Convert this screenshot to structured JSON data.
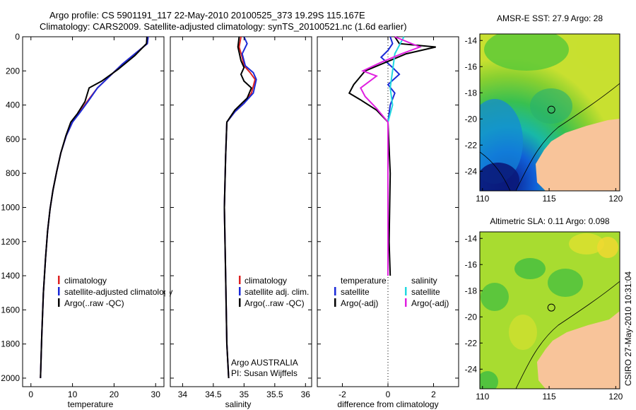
{
  "title": {
    "line1": "Argo profile: CS 5901191_117 22-May-2010 20100525_373 19.29S 115.167E",
    "line2": "Climatology: CARS2009. Satellite-adjusted climatology: synTS_20100521.nc (1.6d earlier)"
  },
  "colors": {
    "climatology": "#dd2222",
    "satellite": "#1a2ad8",
    "argo": "#000000",
    "satellite_salinity": "#22d8e0",
    "argo_adj_salinity": "#e020e0",
    "land": "#f8c49a"
  },
  "chart_data": [
    {
      "type": "line",
      "id": "temperature",
      "xlabel": "temperature",
      "ylabel": "",
      "xlim": [
        -2,
        32
      ],
      "ylim": [
        0,
        2050
      ],
      "y_inverted": true,
      "xticks": [
        0,
        10,
        20,
        30
      ],
      "yticks": [
        0,
        200,
        400,
        600,
        800,
        1000,
        1200,
        1400,
        1600,
        1800,
        2000
      ],
      "legend": [
        "climatology",
        "satellite-adjusted climatology",
        "Argo(..raw -QC)"
      ],
      "series": [
        {
          "name": "climatology",
          "color": "#dd2222",
          "x": [
            28.2,
            28.0,
            25,
            22,
            19,
            16,
            13.5,
            11.5,
            10,
            8.5,
            7.2,
            6.2,
            5.3,
            4.6,
            4.0,
            3.5,
            3.0,
            2.6,
            2.3
          ],
          "y": [
            0,
            40,
            100,
            160,
            230,
            300,
            380,
            450,
            500,
            580,
            680,
            790,
            900,
            1010,
            1140,
            1300,
            1500,
            1750,
            2000
          ]
        },
        {
          "name": "satellite-adjusted climatology",
          "color": "#1a2ad8",
          "x": [
            28.2,
            28.0,
            25,
            22,
            19,
            16,
            13.7,
            11.6,
            10,
            8.5,
            7.2,
            6.2,
            5.3,
            4.6,
            4.0,
            3.5,
            3.0,
            2.6,
            2.3
          ],
          "y": [
            0,
            40,
            100,
            160,
            230,
            300,
            380,
            450,
            500,
            580,
            680,
            790,
            900,
            1010,
            1140,
            1300,
            1500,
            1750,
            2000
          ]
        },
        {
          "name": "Argo(..raw -QC)",
          "color": "#000000",
          "x": [
            27.9,
            27.8,
            25,
            21,
            17,
            14,
            13,
            11.2,
            9.6,
            8.4,
            7.2,
            6.2,
            5.3,
            4.6,
            4.0,
            3.5,
            3.0,
            2.6,
            2.3
          ],
          "y": [
            0,
            40,
            110,
            190,
            260,
            300,
            380,
            450,
            500,
            580,
            680,
            790,
            900,
            1010,
            1140,
            1300,
            1500,
            1750,
            2000
          ]
        }
      ]
    },
    {
      "type": "line",
      "id": "salinity",
      "xlabel": "salinity",
      "ylabel": "",
      "xlim": [
        33.8,
        36.1
      ],
      "ylim": [
        0,
        2050
      ],
      "y_inverted": true,
      "xticks": [
        34,
        34.5,
        35,
        35.5,
        36
      ],
      "legend": [
        "climatology",
        "satellite adj. clim.",
        "Argo(..raw -QC)"
      ],
      "annotations": [
        "Argo AUSTRALIA",
        "PI: Susan Wijffels"
      ],
      "series": [
        {
          "name": "climatology",
          "color": "#dd2222",
          "x": [
            34.95,
            34.92,
            34.97,
            35.0,
            35.1,
            35.18,
            35.12,
            35.0,
            34.85,
            34.72,
            34.7,
            34.68,
            34.7,
            34.72,
            34.75
          ],
          "y": [
            0,
            60,
            120,
            170,
            210,
            250,
            330,
            390,
            440,
            500,
            700,
            1000,
            1400,
            1800,
            2000
          ]
        },
        {
          "name": "satellite adj. clim.",
          "color": "#1a2ad8",
          "x": [
            35.0,
            35.05,
            34.97,
            35.02,
            35.15,
            35.2,
            35.15,
            35.0,
            34.85,
            34.72,
            34.7,
            34.68,
            34.7,
            34.72,
            34.75
          ],
          "y": [
            0,
            40,
            100,
            170,
            210,
            250,
            330,
            390,
            440,
            500,
            700,
            1000,
            1400,
            1800,
            2000
          ]
        },
        {
          "name": "Argo(..raw -QC)",
          "color": "#000000",
          "x": [
            34.92,
            34.9,
            34.95,
            35.0,
            34.95,
            35.0,
            35.12,
            35.05,
            34.85,
            34.72,
            34.7,
            34.68,
            34.7,
            34.72,
            34.75
          ],
          "y": [
            0,
            60,
            140,
            180,
            220,
            260,
            300,
            360,
            430,
            500,
            700,
            1000,
            1400,
            1800,
            2000
          ]
        }
      ]
    },
    {
      "type": "line",
      "id": "difference",
      "xlabel": "difference from climatology",
      "ylabel": "",
      "xlim": [
        -3.1,
        3.1
      ],
      "ylim": [
        0,
        2050
      ],
      "y_inverted": true,
      "xticks": [
        -2,
        0,
        2
      ],
      "legend_left_title": "temperature",
      "legend_left": [
        "satellite",
        "Argo(-adj)"
      ],
      "legend_right_title": "salinity",
      "legend_right": [
        "satellite",
        "Argo(-adj)"
      ],
      "series": [
        {
          "name": "temperature satellite",
          "color": "#1a2ad8",
          "x": [
            0.1,
            0.2,
            0.0,
            -0.3,
            0.2,
            0.5,
            0.0,
            0.3,
            0.1,
            0.0,
            0.0,
            0.0,
            0.0
          ],
          "y": [
            0,
            40,
            80,
            120,
            180,
            220,
            280,
            330,
            400,
            500,
            800,
            1200,
            1400
          ]
        },
        {
          "name": "temperature Argo(-adj)",
          "color": "#000000",
          "x": [
            0.3,
            0.5,
            2.1,
            0.8,
            -1.0,
            -1.5,
            -1.7,
            -1.2,
            -0.5,
            0.0,
            0.1,
            0.05,
            0.1
          ],
          "y": [
            0,
            40,
            60,
            100,
            200,
            280,
            330,
            370,
            430,
            500,
            800,
            1200,
            1400
          ]
        },
        {
          "name": "salinity satellite",
          "color": "#22d8e0",
          "x": [
            0.7,
            0.5,
            0.3,
            0.2,
            0.1,
            0.2,
            0.0,
            0.0,
            0.0,
            0.0
          ],
          "y": [
            0,
            50,
            100,
            200,
            300,
            400,
            500,
            800,
            1200,
            1400
          ]
        },
        {
          "name": "salinity Argo(-adj)",
          "color": "#e020e0",
          "x": [
            0.3,
            1.4,
            0.6,
            -0.3,
            -1.1,
            -0.5,
            -1.2,
            -1.0,
            -0.5,
            0.0,
            0.0,
            0.0
          ],
          "y": [
            0,
            60,
            100,
            150,
            200,
            230,
            300,
            350,
            420,
            500,
            800,
            1400
          ]
        }
      ]
    },
    {
      "type": "heatmap",
      "id": "sst_map",
      "title": "AMSR-E SST: 27.9 Argo: 28",
      "xlim": [
        109.8,
        120.3
      ],
      "ylim": [
        -25.5,
        -13.5
      ],
      "xticks": [
        110,
        115,
        120
      ],
      "yticks": [
        -14,
        -16,
        -18,
        -20,
        -22,
        -24
      ],
      "marker": {
        "lon": 115.167,
        "lat": -19.29
      }
    },
    {
      "type": "heatmap",
      "id": "sla_map",
      "title": "Altimetric SLA: 0.11 Argo: 0.098",
      "xlim": [
        109.8,
        120.3
      ],
      "ylim": [
        -25.5,
        -13.5
      ],
      "xticks": [
        110,
        115,
        120
      ],
      "yticks": [
        -14,
        -16,
        -18,
        -20,
        -22,
        -24
      ],
      "marker": {
        "lon": 115.167,
        "lat": -19.29
      }
    }
  ],
  "footer": {
    "stamp": "CSIRO 27-May-2010 10:31:04"
  }
}
